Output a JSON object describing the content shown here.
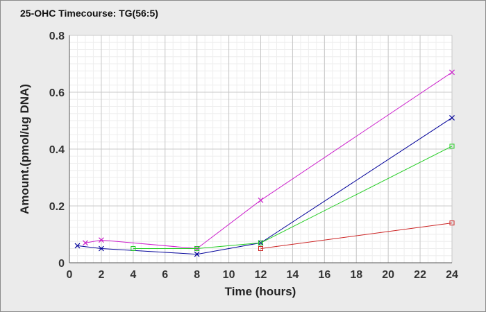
{
  "chart_data": {
    "type": "line",
    "title": "25-OHC Timecourse: TG(56:5)",
    "xlabel": "Time (hours)",
    "ylabel": "Amount.(pmol/ug DNA)",
    "xlim": [
      0,
      24
    ],
    "ylim": [
      0,
      0.8
    ],
    "xticks": [
      "0",
      "2",
      "4",
      "6",
      "8",
      "10",
      "12",
      "14",
      "16",
      "18",
      "20",
      "22",
      "24"
    ],
    "yticks": [
      "0",
      "0.2",
      "0.4",
      "0.6",
      "0.8"
    ],
    "grid": true,
    "legend": "none",
    "series": [
      {
        "color": "#cc22cc",
        "marker": "x",
        "x": [
          1,
          2,
          8,
          12,
          24
        ],
        "y": [
          0.07,
          0.08,
          0.05,
          0.22,
          0.67
        ]
      },
      {
        "color": "#000099",
        "marker": "x",
        "x": [
          0.5,
          2,
          8,
          12,
          24
        ],
        "y": [
          0.06,
          0.05,
          0.03,
          0.07,
          0.51
        ]
      },
      {
        "color": "#22cc22",
        "marker": "square",
        "x": [
          4,
          8,
          12,
          24
        ],
        "y": [
          0.05,
          0.05,
          0.07,
          0.41
        ]
      },
      {
        "color": "#cc2222",
        "marker": "square",
        "x": [
          12,
          24
        ],
        "y": [
          0.05,
          0.14
        ]
      }
    ]
  }
}
